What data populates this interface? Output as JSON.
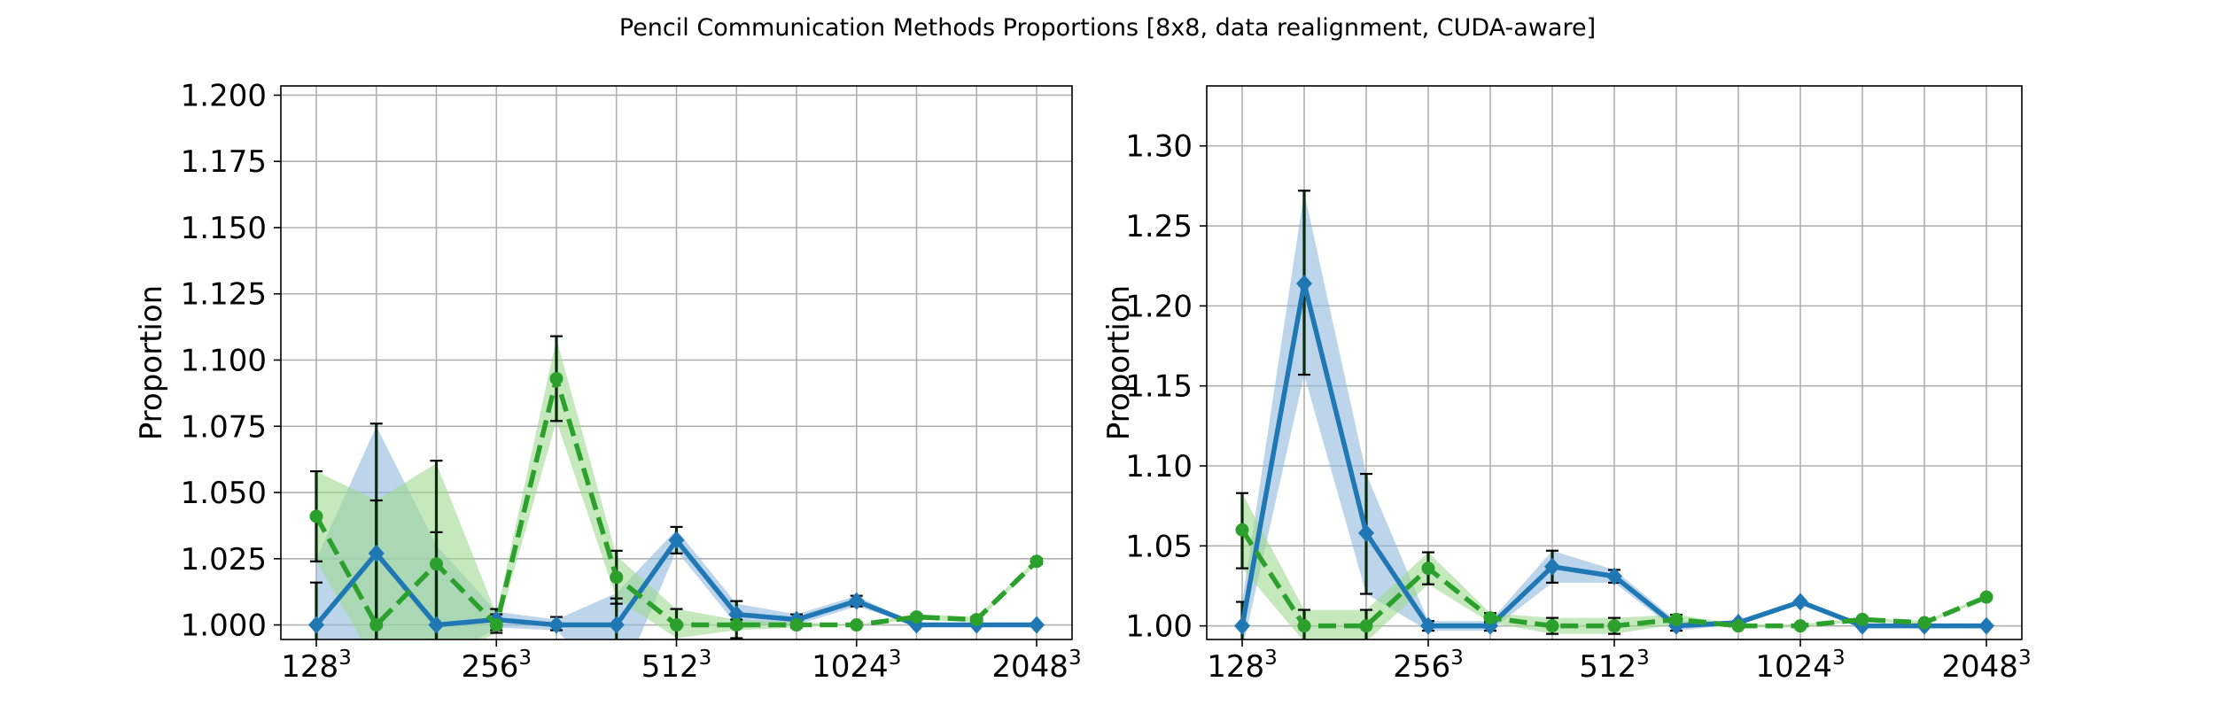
{
  "title": "Pencil Communication Methods Proportions [8x8, data realignment, CUDA-aware]",
  "colors": {
    "blue": "#1f77b4",
    "green": "#2ca02c",
    "blue_band": "#8fb9dc",
    "green_band": "#9fd88f",
    "errorbar": "#000000",
    "grid": "#b0b0b0"
  },
  "chart_data": [
    {
      "type": "line",
      "ylabel": "Proportion",
      "xlabel": "",
      "ylim": [
        0.9945,
        1.2035
      ],
      "yticks": [
        "1.000",
        "1.025",
        "1.050",
        "1.075",
        "1.100",
        "1.125",
        "1.150",
        "1.175",
        "1.200"
      ],
      "xtick_labels": [
        {
          "base": "128",
          "exp": "3",
          "index": 0
        },
        {
          "base": "256",
          "exp": "3",
          "index": 3
        },
        {
          "base": "512",
          "exp": "3",
          "index": 6
        },
        {
          "base": "1024",
          "exp": "3",
          "index": 9
        },
        {
          "base": "2048",
          "exp": "3",
          "index": 12
        }
      ],
      "grid": true,
      "series": [
        {
          "color": "blue",
          "marker": "diamond",
          "linestyle": "solid",
          "values": [
            1.0,
            1.027,
            1.0,
            1.002,
            1.0,
            1.0,
            1.032,
            1.004,
            1.002,
            1.009,
            1.0,
            1.0,
            1.0
          ],
          "band_low": [
            0.975,
            0.98,
            0.985,
            0.999,
            0.998,
            0.975,
            1.028,
            1.0,
            1.0,
            1.007,
            1.0,
            1.0,
            1.0
          ],
          "band_high": [
            1.025,
            1.075,
            1.03,
            1.005,
            1.002,
            1.012,
            1.036,
            1.008,
            1.004,
            1.011,
            1.0,
            1.0,
            1.0
          ],
          "err_low": [
            0.985,
            0.978,
            0.965,
            0.998,
            0.998,
            0.99,
            1.027,
            0.999,
            1.0,
            1.007,
            1.0,
            1.0,
            1.0
          ],
          "err_high": [
            1.016,
            1.076,
            1.035,
            1.006,
            1.003,
            1.01,
            1.037,
            1.009,
            1.004,
            1.011,
            1.0,
            1.0,
            1.0
          ]
        },
        {
          "color": "green",
          "marker": "circle",
          "linestyle": "dashed",
          "values": [
            1.041,
            1.0,
            1.023,
            1.0,
            1.093,
            1.018,
            1.0,
            1.0,
            1.0,
            1.0,
            1.003,
            1.002,
            1.024
          ],
          "band_low": [
            1.024,
            0.985,
            0.985,
            0.997,
            1.077,
            1.01,
            0.995,
            0.998,
            0.999,
            1.0,
            1.002,
            1.001,
            1.023
          ],
          "band_high": [
            1.058,
            1.047,
            1.061,
            1.004,
            1.108,
            1.026,
            1.006,
            1.002,
            1.001,
            1.0,
            1.004,
            1.003,
            1.025
          ],
          "err_low": [
            1.024,
            0.99,
            0.985,
            0.997,
            1.077,
            1.008,
            0.994,
            0.995,
            0.999,
            1.0,
            1.002,
            1.001,
            1.023
          ],
          "err_high": [
            1.058,
            1.047,
            1.062,
            1.004,
            1.109,
            1.028,
            1.006,
            1.002,
            1.001,
            1.0,
            1.004,
            1.003,
            1.025
          ]
        }
      ]
    },
    {
      "type": "line",
      "ylabel": "Proportion",
      "xlabel": "",
      "ylim": [
        0.9915,
        1.3375
      ],
      "yticks": [
        "1.00",
        "1.05",
        "1.10",
        "1.15",
        "1.20",
        "1.25",
        "1.30"
      ],
      "xtick_labels": [
        {
          "base": "128",
          "exp": "3",
          "index": 0
        },
        {
          "base": "256",
          "exp": "3",
          "index": 3
        },
        {
          "base": "512",
          "exp": "3",
          "index": 6
        },
        {
          "base": "1024",
          "exp": "3",
          "index": 9
        },
        {
          "base": "2048",
          "exp": "3",
          "index": 12
        }
      ],
      "grid": true,
      "series": [
        {
          "color": "blue",
          "marker": "diamond",
          "linestyle": "solid",
          "values": [
            1.0,
            1.214,
            1.058,
            1.0,
            1.0,
            1.037,
            1.031,
            1.0,
            1.002,
            1.015,
            1.0,
            1.0,
            1.0
          ],
          "band_low": [
            0.985,
            1.157,
            1.02,
            0.997,
            0.997,
            1.027,
            1.027,
            0.997,
            1.001,
            1.014,
            1.0,
            1.0,
            1.0
          ],
          "band_high": [
            1.015,
            1.271,
            1.095,
            1.003,
            1.003,
            1.047,
            1.035,
            1.003,
            1.003,
            1.016,
            1.0,
            1.0,
            1.0
          ],
          "err_low": [
            0.985,
            1.157,
            1.02,
            0.997,
            0.997,
            1.027,
            1.027,
            0.997,
            1.001,
            1.014,
            1.0,
            1.0,
            1.0
          ],
          "err_high": [
            1.015,
            1.272,
            1.095,
            1.003,
            1.003,
            1.047,
            1.035,
            1.003,
            1.003,
            1.016,
            1.0,
            1.0,
            1.0
          ]
        },
        {
          "color": "green",
          "marker": "circle",
          "linestyle": "dashed",
          "values": [
            1.06,
            1.0,
            1.0,
            1.036,
            1.005,
            1.0,
            1.0,
            1.004,
            1.0,
            1.0,
            1.004,
            1.002,
            1.018
          ],
          "band_low": [
            1.036,
            0.99,
            0.99,
            1.026,
            1.002,
            0.995,
            0.995,
            1.001,
            0.999,
            0.999,
            1.003,
            1.001,
            1.017
          ],
          "band_high": [
            1.083,
            1.01,
            1.01,
            1.046,
            1.008,
            1.005,
            1.005,
            1.007,
            1.001,
            1.001,
            1.005,
            1.003,
            1.019
          ],
          "err_low": [
            1.036,
            0.99,
            0.99,
            1.026,
            1.002,
            0.995,
            0.995,
            1.001,
            0.999,
            0.999,
            1.003,
            1.001,
            1.017
          ],
          "err_high": [
            1.083,
            1.01,
            1.01,
            1.046,
            1.008,
            1.005,
            1.005,
            1.007,
            1.001,
            1.001,
            1.005,
            1.003,
            1.019
          ]
        }
      ]
    }
  ]
}
